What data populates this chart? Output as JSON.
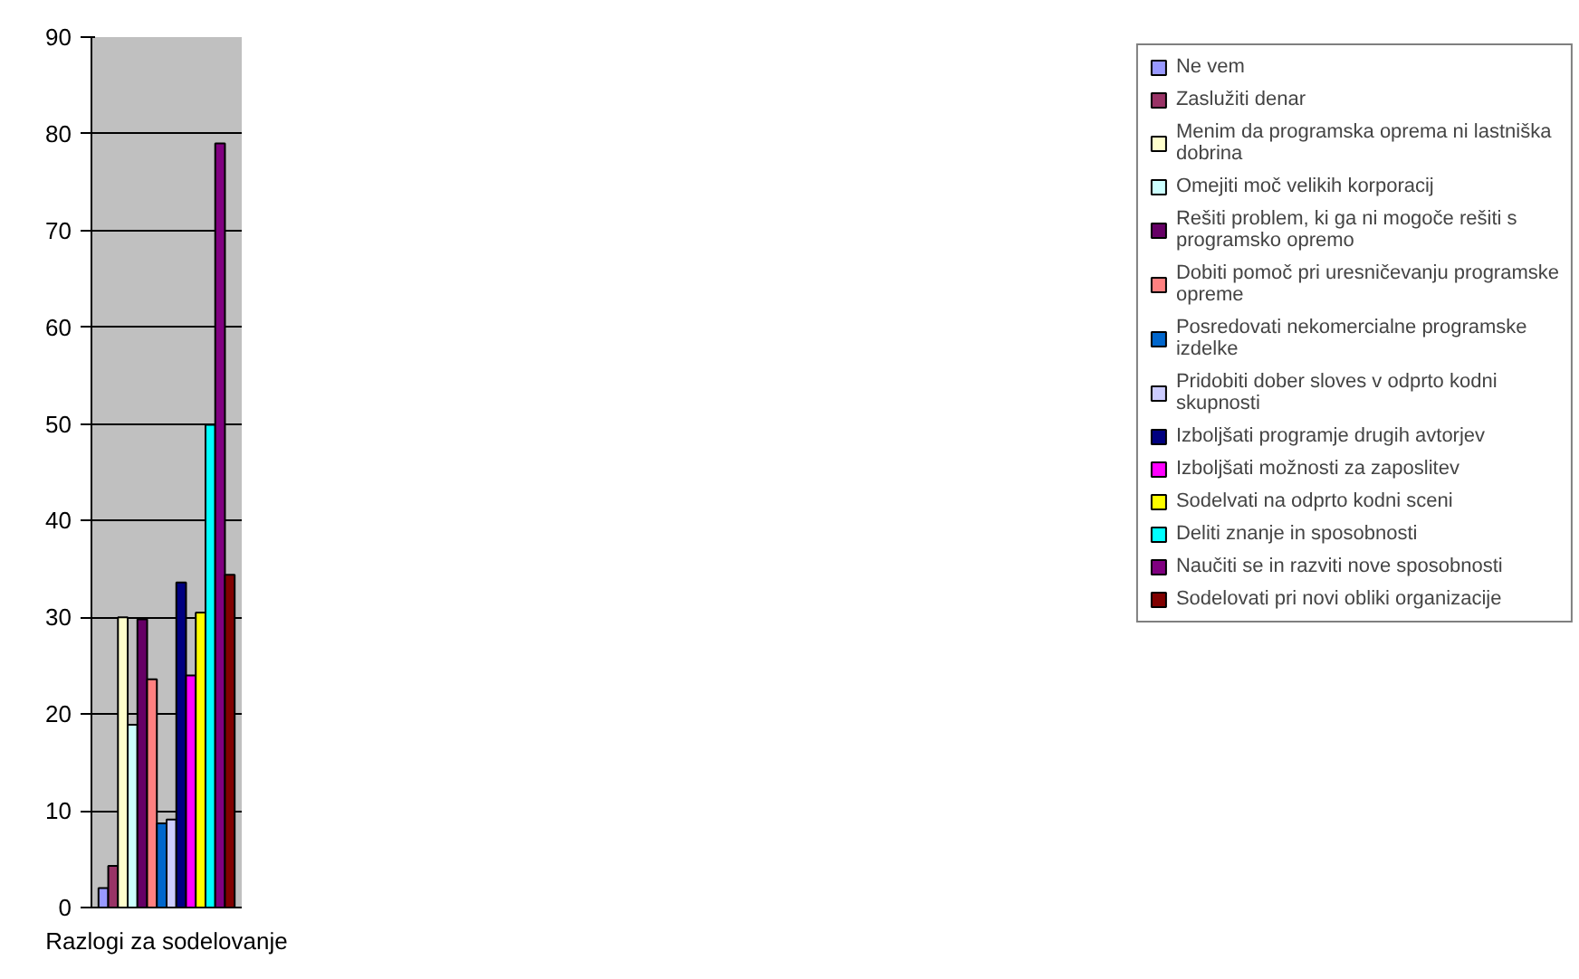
{
  "chart_data": {
    "type": "bar",
    "categories": [
      "Razlogi za sodelovanje"
    ],
    "series": [
      {
        "name": "Ne vem",
        "color": "#9999ff",
        "values": [
          2.0
        ]
      },
      {
        "name": "Zaslužiti denar",
        "color": "#993366",
        "values": [
          4.3
        ]
      },
      {
        "name": "Menim da programska oprema ni lastniška dobrina",
        "color": "#ffffcc",
        "values": [
          30
        ]
      },
      {
        "name": "Omejiti moč velikih korporacij",
        "color": "#ccffff",
        "values": [
          18.9
        ]
      },
      {
        "name": "Rešiti problem, ki ga ni mogoče rešiti s programsko opremo",
        "color": "#660066",
        "values": [
          29.8
        ]
      },
      {
        "name": "Dobiti pomoč pri uresničevanju programske opreme",
        "color": "#ff8080",
        "values": [
          23.6
        ]
      },
      {
        "name": "Posredovati nekomercialne programske izdelke",
        "color": "#0066cc",
        "values": [
          8.7
        ]
      },
      {
        "name": "Pridobiti dober sloves v odprto kodni skupnosti",
        "color": "#ccccff",
        "values": [
          9.1
        ]
      },
      {
        "name": "Izboljšati programje drugih avtorjev",
        "color": "#000080",
        "values": [
          33.6
        ]
      },
      {
        "name": "Izboljšati možnosti za zaposlitev",
        "color": "#ff00ff",
        "values": [
          24.0
        ]
      },
      {
        "name": "Sodelvati na odprto kodni sceni",
        "color": "#ffff00",
        "values": [
          30.5
        ]
      },
      {
        "name": "Deliti znanje in sposobnosti",
        "color": "#00ffff",
        "values": [
          49.9
        ]
      },
      {
        "name": "Naučiti se in razviti nove sposobnosti",
        "color": "#800080",
        "values": [
          79.0
        ]
      },
      {
        "name": "Sodelovati pri novi obliki organizacije",
        "color": "#800000",
        "values": [
          34.4
        ]
      }
    ],
    "ylim": [
      0,
      90
    ],
    "yticks": [
      0,
      10,
      20,
      30,
      40,
      50,
      60,
      70,
      80,
      90
    ],
    "grid": "y",
    "legend": "right"
  }
}
